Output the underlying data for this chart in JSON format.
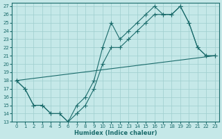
{
  "xlabel": "Humidex (Indice chaleur)",
  "xlim": [
    -0.5,
    23.5
  ],
  "ylim": [
    13,
    27.4
  ],
  "yticks": [
    13,
    14,
    15,
    16,
    17,
    18,
    19,
    20,
    21,
    22,
    23,
    24,
    25,
    26,
    27
  ],
  "xticks": [
    0,
    1,
    2,
    3,
    4,
    5,
    6,
    7,
    8,
    9,
    10,
    11,
    12,
    13,
    14,
    15,
    16,
    17,
    18,
    19,
    20,
    21,
    22,
    23
  ],
  "bg_color": "#c5e8e8",
  "line_color": "#1a6b6b",
  "grid_color": "#9ecece",
  "line1_x": [
    0,
    1,
    2,
    3,
    4,
    5,
    6,
    7,
    8,
    9,
    10,
    11,
    12,
    13,
    14,
    15,
    16,
    17,
    18,
    19,
    20,
    21,
    22,
    23
  ],
  "line1_y": [
    18,
    17,
    15,
    15,
    14,
    14,
    13,
    15,
    16,
    18,
    22,
    25,
    23,
    24,
    25,
    26,
    27,
    26,
    26,
    27,
    25,
    22,
    21,
    21
  ],
  "line2_x": [
    0,
    1,
    2,
    3,
    4,
    5,
    6,
    7,
    8,
    9,
    10,
    11,
    12,
    13,
    14,
    15,
    16,
    17,
    18,
    19,
    20,
    21,
    22,
    23
  ],
  "line2_y": [
    18,
    17,
    15,
    15,
    14,
    14,
    13,
    14,
    15,
    17,
    20,
    22,
    22,
    23,
    24,
    25,
    26,
    26,
    26,
    27,
    25,
    22,
    21,
    21
  ],
  "line3_x": [
    0,
    23
  ],
  "line3_y": [
    18,
    21
  ]
}
